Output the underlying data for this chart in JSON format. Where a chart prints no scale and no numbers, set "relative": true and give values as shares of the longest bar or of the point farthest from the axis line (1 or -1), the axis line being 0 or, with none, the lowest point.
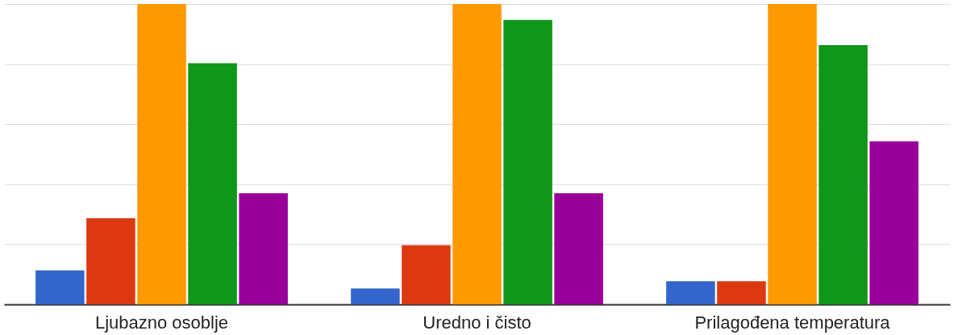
{
  "chart_data": {
    "type": "bar",
    "relative": true,
    "grid": "y",
    "categories": [
      "Ljubazno osoblje",
      "Uredno i čisto",
      "Prilagođena temperatura"
    ],
    "series": [
      {
        "color": "#3366cc",
        "values": [
          0.113,
          0.053,
          0.077
        ]
      },
      {
        "color": "#dc3912",
        "values": [
          0.287,
          0.197,
          0.077
        ]
      },
      {
        "color": "#ff9900",
        "values": [
          1,
          1,
          1
        ]
      },
      {
        "color": "#109618",
        "values": [
          0.803,
          0.947,
          0.863
        ]
      },
      {
        "color": "#990099",
        "values": [
          0.37,
          0.37,
          0.543
        ]
      }
    ]
  }
}
